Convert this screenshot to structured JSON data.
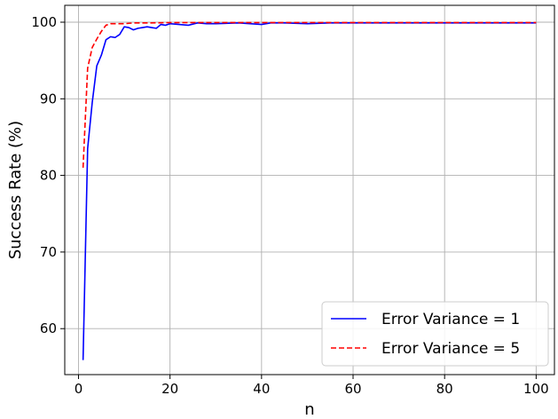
{
  "chart_data": {
    "type": "line",
    "title": "",
    "xlabel": "n",
    "ylabel": "Success Rate (%)",
    "xlim": [
      -3,
      104
    ],
    "ylim": [
      54,
      102.2
    ],
    "xticks": [
      0,
      20,
      40,
      60,
      80,
      100
    ],
    "yticks": [
      60,
      70,
      80,
      90,
      100
    ],
    "grid": true,
    "legend_position": "bottom-right",
    "series": [
      {
        "name": "Error Variance = 1",
        "color": "#0000ff",
        "style": "solid",
        "x": [
          1,
          2,
          3,
          4,
          5,
          6,
          7,
          8,
          9,
          10,
          11,
          12,
          13,
          14,
          15,
          16,
          17,
          18,
          19,
          20,
          22,
          24,
          26,
          28,
          30,
          35,
          40,
          42,
          45,
          50,
          55,
          60,
          70,
          80,
          90,
          100
        ],
        "y": [
          55.9,
          83.5,
          89.5,
          94.3,
          95.7,
          97.7,
          98.1,
          98.0,
          98.4,
          99.4,
          99.3,
          99.0,
          99.2,
          99.3,
          99.4,
          99.3,
          99.2,
          99.7,
          99.6,
          99.8,
          99.7,
          99.6,
          99.9,
          99.8,
          99.8,
          99.9,
          99.7,
          99.9,
          99.9,
          99.8,
          99.9,
          99.9,
          99.9,
          99.9,
          99.9,
          99.9
        ]
      },
      {
        "name": "Error Variance = 5",
        "color": "#ff0000",
        "style": "dashed",
        "x": [
          1,
          2,
          3,
          4,
          5,
          6,
          7,
          8,
          10,
          12,
          15,
          20,
          30,
          40,
          60,
          80,
          100
        ],
        "y": [
          81.0,
          94.0,
          96.7,
          97.8,
          98.8,
          99.6,
          99.8,
          99.8,
          99.8,
          99.9,
          99.9,
          99.95,
          99.95,
          99.95,
          99.95,
          99.95,
          99.95
        ]
      }
    ]
  }
}
